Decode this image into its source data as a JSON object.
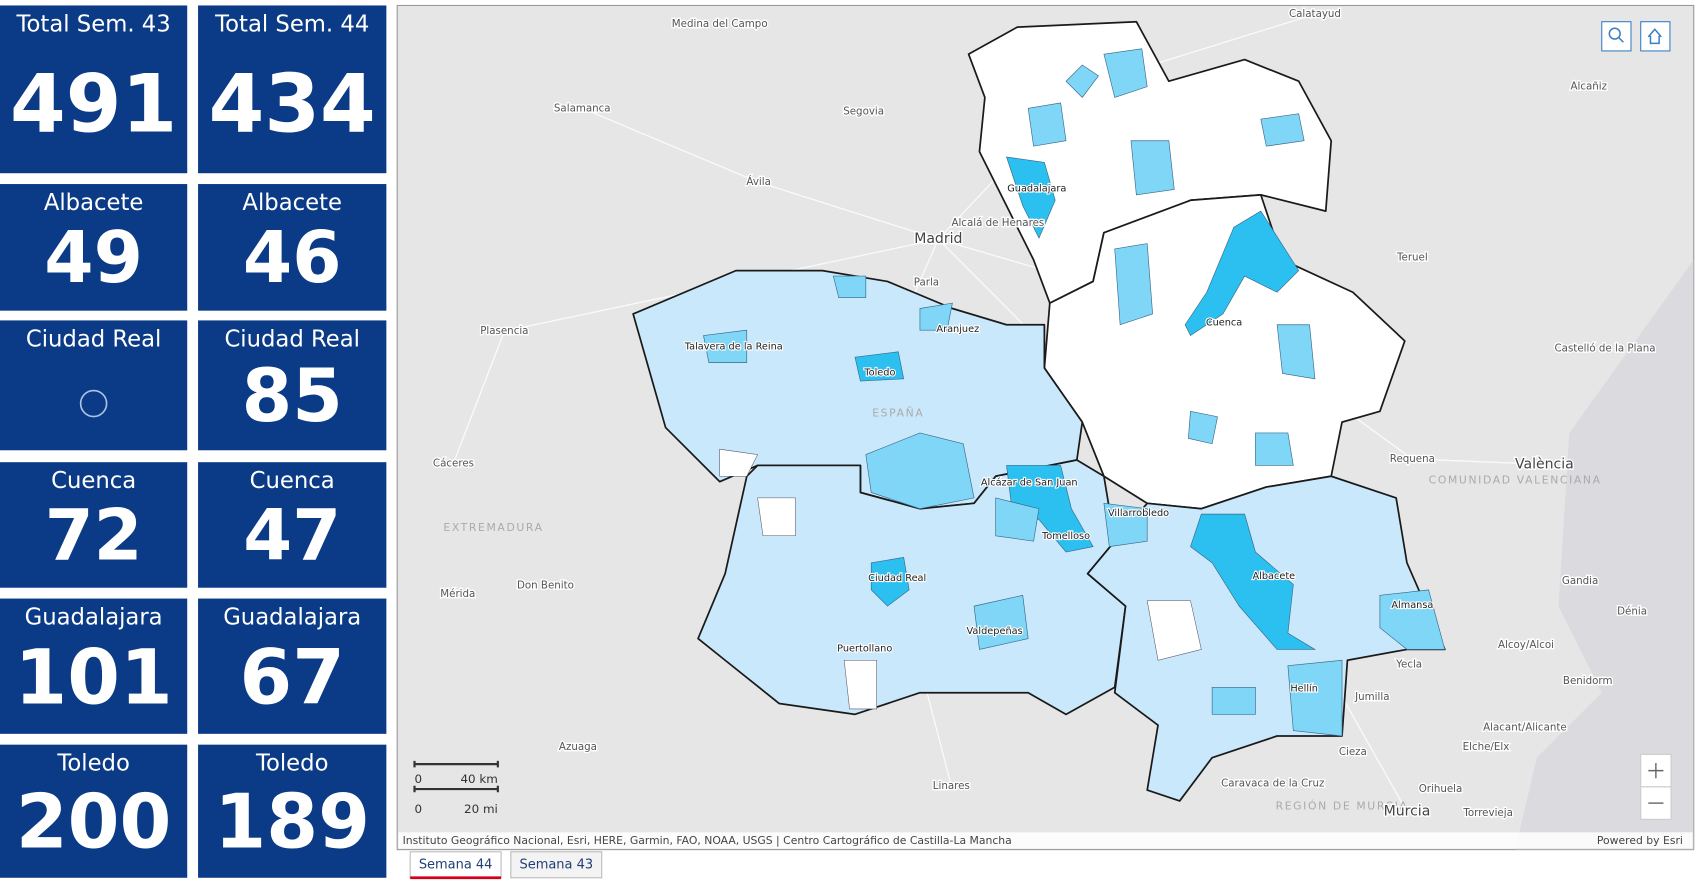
{
  "indicators": [
    {
      "title": "Total Sem. 43",
      "value": 491
    },
    {
      "title": "Total Sem. 44",
      "value": 434
    },
    {
      "title": "Albacete",
      "value": 49
    },
    {
      "title": "Albacete",
      "value": 46
    },
    {
      "title": "Ciudad Real"
    },
    {
      "title": "Ciudad Real",
      "value": 85
    },
    {
      "title": "Cuenca",
      "value": 72
    },
    {
      "title": "Cuenca",
      "value": 47
    },
    {
      "title": "Guadalajara",
      "value": 101
    },
    {
      "title": "Guadalajara",
      "value": 67
    },
    {
      "title": "Toledo",
      "value": 200
    },
    {
      "title": "Toledo",
      "value": 189
    }
  ],
  "map": {
    "labels": [
      "Medina del Campo",
      "Calatayud",
      "Salamanca",
      "Segovia",
      "Alcañiz",
      "Ávila",
      "Madrid",
      "Alcalá de Henares",
      "Guadalajara",
      "Teruel",
      "Parla",
      "Plasencia",
      "Talavera de la Reina",
      "Aranjuez",
      "Toledo",
      "Cuenca",
      "Castelló de la Plana",
      "ESPAÑA",
      "Cáceres",
      "Alcázar de San Juan",
      "Requena",
      "València",
      "COMUNIDAD VALENCIANA",
      "EXTREMADURA",
      "Villarrobledo",
      "Tomelloso",
      "Mérida",
      "Don Benito",
      "Ciudad Real",
      "Albacete",
      "Almansa",
      "Gandia",
      "Dénia",
      "Valdepeñas",
      "Puertollano",
      "Alcoy/Alcoi",
      "Benidorm",
      "Yecla",
      "Hellín",
      "Jumilla",
      "Azuaga",
      "Cieza",
      "Alacant/Alicante",
      "Elche/Elx",
      "Linares",
      "Caravaca de la Cruz",
      "Orihuela",
      "REGIÓN DE MURCIA",
      "Murcia",
      "Torrevieja"
    ],
    "scale_bar": [
      "0",
      "40 km",
      "0",
      "20 mi"
    ],
    "attribution": "Instituto Geográfico Nacional, Esri, HERE, Garmin, FAO, NOAA, USGS | Centro Cartográfico de Castilla-La Mancha",
    "powered_by": "Powered by Esri"
  },
  "tabs": [
    "Semana 44",
    "Semana 43"
  ]
}
